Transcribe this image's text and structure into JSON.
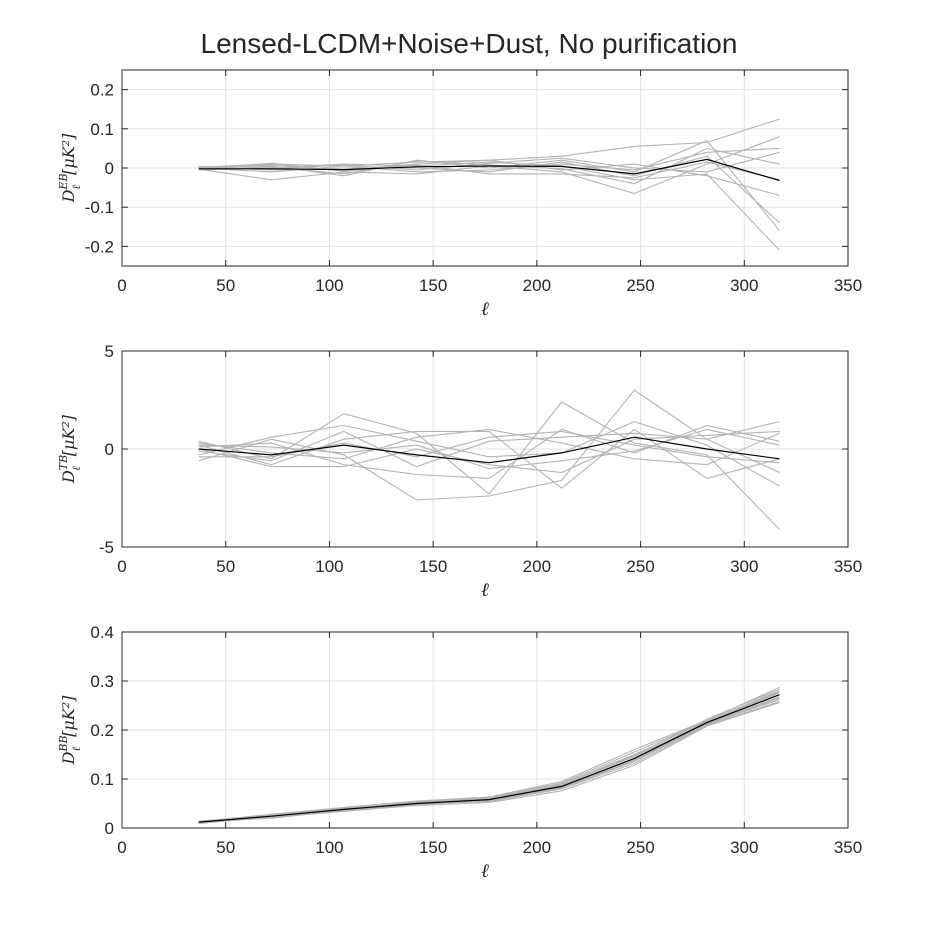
{
  "figure": {
    "title": "Lensed-LCDM+Noise+Dust, No purification"
  },
  "chart_data": [
    {
      "type": "line",
      "panel": "EB",
      "xlabel": "ℓ",
      "ylabel": {
        "base": "D",
        "sup": "EB",
        "sub": "ℓ",
        "unit": "[μK²]"
      },
      "xlim": [
        0,
        350
      ],
      "ylim": [
        -0.25,
        0.25
      ],
      "xticks": [
        0,
        50,
        100,
        150,
        200,
        250,
        300,
        350
      ],
      "yticks": [
        -0.2,
        -0.1,
        0,
        0.1,
        0.2
      ],
      "ytick_labels": [
        "-0.2",
        "-0.1",
        "0",
        "0.1",
        "0.2"
      ],
      "grid": true,
      "x": [
        37,
        72,
        107,
        142,
        177,
        212,
        247,
        282,
        317
      ],
      "mean": [
        -0.002,
        -0.002,
        -0.004,
        0.003,
        0.005,
        0.004,
        -0.015,
        0.022,
        -0.032
      ],
      "realizations": [
        [
          0.002,
          0.01,
          0.005,
          0.015,
          0.02,
          0.03,
          0.055,
          0.065,
          0.125
        ],
        [
          -0.003,
          -0.03,
          -0.01,
          -0.015,
          0.005,
          -0.01,
          -0.065,
          0.01,
          0.08
        ],
        [
          0.003,
          0.005,
          -0.02,
          0.02,
          0.0,
          0.02,
          -0.01,
          0.07,
          -0.16
        ],
        [
          -0.005,
          0.0,
          0.01,
          0.005,
          0.015,
          0.005,
          -0.03,
          -0.015,
          -0.21
        ],
        [
          0.0,
          -0.01,
          0.005,
          -0.01,
          -0.005,
          0.01,
          -0.005,
          0.04,
          0.05
        ],
        [
          -0.002,
          0.008,
          -0.005,
          0.01,
          0.02,
          -0.005,
          0.01,
          -0.02,
          -0.07
        ],
        [
          0.004,
          -0.005,
          0.0,
          0.0,
          -0.01,
          0.015,
          -0.02,
          0.03,
          -0.14
        ],
        [
          -0.004,
          0.003,
          -0.015,
          0.018,
          0.008,
          -0.002,
          -0.04,
          0.05,
          0.01
        ],
        [
          0.001,
          -0.002,
          0.008,
          -0.005,
          0.012,
          0.025,
          0.0,
          -0.01,
          0.04
        ],
        [
          -0.001,
          0.012,
          -0.008,
          0.008,
          -0.015,
          -0.015,
          -0.025,
          0.015,
          -0.03
        ]
      ]
    },
    {
      "type": "line",
      "panel": "TB",
      "xlabel": "ℓ",
      "ylabel": {
        "base": "D",
        "sup": "TB",
        "sub": "ℓ",
        "unit": "[μK²]"
      },
      "xlim": [
        0,
        350
      ],
      "ylim": [
        -5,
        5
      ],
      "xticks": [
        0,
        50,
        100,
        150,
        200,
        250,
        300,
        350
      ],
      "yticks": [
        -5,
        0,
        5
      ],
      "ytick_labels": [
        "-5",
        "0",
        "5"
      ],
      "grid": true,
      "x": [
        37,
        72,
        107,
        142,
        177,
        212,
        247,
        282,
        317
      ],
      "mean": [
        0.0,
        -0.3,
        0.2,
        -0.3,
        -0.7,
        -0.2,
        0.6,
        0.0,
        -0.5
      ],
      "realizations": [
        [
          0.4,
          -0.5,
          1.8,
          0.8,
          -2.3,
          2.4,
          0.3,
          -0.3,
          -4.1
        ],
        [
          -0.6,
          0.5,
          -0.3,
          -2.6,
          -2.4,
          -1.6,
          3.0,
          0.5,
          1.4
        ],
        [
          0.2,
          -0.8,
          0.5,
          0.9,
          0.9,
          -2.0,
          1.0,
          -1.5,
          -0.5
        ],
        [
          0.1,
          0.3,
          -0.8,
          -1.3,
          -1.5,
          1.0,
          -0.2,
          1.2,
          0.4
        ],
        [
          -0.3,
          0.6,
          1.2,
          0.4,
          -0.4,
          -0.2,
          1.4,
          0.2,
          -1.9
        ],
        [
          0.3,
          -0.2,
          -0.5,
          0.6,
          1.0,
          0.3,
          -0.5,
          -0.8,
          0.8
        ],
        [
          -0.1,
          -0.6,
          0.9,
          -0.9,
          0.4,
          0.6,
          0.8,
          0.5,
          -1.2
        ],
        [
          0.2,
          0.1,
          -0.2,
          0.2,
          -1.0,
          -0.6,
          -0.1,
          1.0,
          0.2
        ],
        [
          -0.4,
          -0.4,
          0.3,
          -0.4,
          0.6,
          0.9,
          0.2,
          -0.4,
          -0.7
        ],
        [
          0.0,
          -0.9,
          -0.9,
          0.0,
          -0.8,
          -1.2,
          0.5,
          0.7,
          0.9
        ]
      ]
    },
    {
      "type": "line",
      "panel": "BB",
      "xlabel": "ℓ",
      "ylabel": {
        "base": "D",
        "sup": "BB",
        "sub": "ℓ",
        "unit": "[μK²]"
      },
      "xlim": [
        0,
        350
      ],
      "ylim": [
        0,
        0.4
      ],
      "xticks": [
        0,
        50,
        100,
        150,
        200,
        250,
        300,
        350
      ],
      "yticks": [
        0,
        0.1,
        0.2,
        0.3,
        0.4
      ],
      "ytick_labels": [
        "0",
        "0.1",
        "0.2",
        "0.3",
        "0.4"
      ],
      "grid": true,
      "x": [
        37,
        72,
        107,
        142,
        177,
        212,
        247,
        282,
        317
      ],
      "mean": [
        0.012,
        0.024,
        0.038,
        0.05,
        0.058,
        0.085,
        0.142,
        0.215,
        0.272
      ],
      "realizations": [
        [
          0.013,
          0.028,
          0.042,
          0.055,
          0.063,
          0.095,
          0.16,
          0.22,
          0.287
        ],
        [
          0.01,
          0.022,
          0.034,
          0.046,
          0.052,
          0.076,
          0.128,
          0.208,
          0.256
        ],
        [
          0.011,
          0.025,
          0.04,
          0.052,
          0.06,
          0.09,
          0.15,
          0.218,
          0.28
        ],
        [
          0.014,
          0.02,
          0.036,
          0.048,
          0.056,
          0.082,
          0.136,
          0.212,
          0.262
        ],
        [
          0.012,
          0.026,
          0.039,
          0.053,
          0.061,
          0.088,
          0.146,
          0.216,
          0.276
        ],
        [
          0.009,
          0.023,
          0.035,
          0.049,
          0.054,
          0.08,
          0.132,
          0.21,
          0.258
        ],
        [
          0.013,
          0.024,
          0.041,
          0.051,
          0.059,
          0.087,
          0.148,
          0.222,
          0.283
        ],
        [
          0.011,
          0.021,
          0.037,
          0.047,
          0.057,
          0.084,
          0.14,
          0.214,
          0.268
        ],
        [
          0.012,
          0.027,
          0.038,
          0.054,
          0.062,
          0.092,
          0.155,
          0.219,
          0.278
        ],
        [
          0.01,
          0.024,
          0.036,
          0.05,
          0.055,
          0.083,
          0.138,
          0.213,
          0.265
        ]
      ]
    }
  ]
}
